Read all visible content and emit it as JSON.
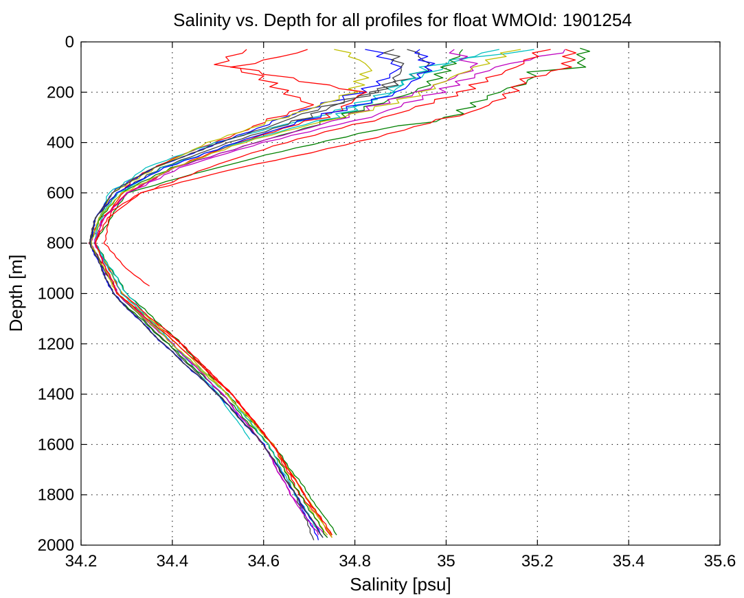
{
  "chart_data": {
    "type": "line",
    "title": "Salinity vs. Depth for all profiles for float WMOId: 1901254",
    "xlabel": "Salinity [psu]",
    "ylabel": "Depth [m]",
    "xlim": [
      34.2,
      35.6
    ],
    "ylim": [
      0,
      2000
    ],
    "y_reversed": true,
    "grid": true,
    "legend": "none",
    "x_ticks": [
      34.2,
      34.4,
      34.6,
      34.8,
      35,
      35.2,
      35.4,
      35.6
    ],
    "x_tick_labels": [
      "34.2",
      "34.4",
      "34.6",
      "34.8",
      "35",
      "35.2",
      "35.4",
      "35.6"
    ],
    "y_ticks": [
      0,
      200,
      400,
      600,
      800,
      1000,
      1200,
      1400,
      1600,
      1800,
      2000
    ],
    "y_tick_labels": [
      "0",
      "200",
      "400",
      "600",
      "800",
      "1000",
      "1200",
      "1400",
      "1600",
      "1800",
      "2000"
    ],
    "series_colors": [
      "#ff0000",
      "#008000",
      "#0000ff",
      "#00bfbf",
      "#bf00bf",
      "#bfbf00",
      "#404040"
    ],
    "series": [
      {
        "color": "#008000",
        "depth": [
          25,
          50,
          100,
          120,
          200,
          300,
          350,
          450,
          600,
          800,
          1000,
          1200,
          1400,
          1600,
          1800,
          1960
        ],
        "salinity": [
          35.32,
          35.31,
          35.28,
          35.2,
          35.13,
          35.0,
          34.85,
          34.6,
          34.3,
          34.23,
          34.3,
          34.42,
          34.52,
          34.62,
          34.7,
          34.76
        ]
      },
      {
        "color": "#ff0000",
        "depth": [
          30,
          90,
          150,
          250,
          320,
          450,
          550,
          650,
          800,
          900,
          970
        ],
        "salinity": [
          34.58,
          34.5,
          34.6,
          34.72,
          34.6,
          34.42,
          34.31,
          34.27,
          34.25,
          34.3,
          34.35
        ]
      },
      {
        "color": "#ff0000",
        "depth": [
          30,
          100,
          180,
          280,
          380,
          500,
          600,
          700,
          800,
          1000,
          1200,
          1400,
          1600,
          1800,
          1970
        ],
        "salinity": [
          35.27,
          35.25,
          35.15,
          35.05,
          34.85,
          34.55,
          34.33,
          34.24,
          34.22,
          34.28,
          34.42,
          34.53,
          34.62,
          34.69,
          34.75
        ]
      },
      {
        "color": "#00bfbf",
        "depth": [
          30,
          80,
          200,
          300,
          400,
          500,
          600,
          800,
          1000,
          1200,
          1400,
          1580
        ],
        "salinity": [
          35.2,
          35.0,
          34.88,
          34.7,
          34.5,
          34.34,
          34.26,
          34.23,
          34.3,
          34.4,
          34.5,
          34.57
        ]
      },
      {
        "color": "#0000ff",
        "depth": [
          30,
          100,
          200,
          300,
          400,
          500,
          600,
          700,
          800,
          1000,
          1200,
          1400,
          1600,
          1800,
          1980
        ],
        "salinity": [
          34.85,
          34.9,
          34.8,
          34.66,
          34.5,
          34.36,
          34.27,
          34.23,
          34.22,
          34.27,
          34.38,
          34.5,
          34.6,
          34.67,
          34.72
        ]
      },
      {
        "color": "#bf00bf",
        "depth": [
          30,
          100,
          200,
          300,
          400,
          500,
          600,
          700,
          800,
          1000,
          1200,
          1400,
          1600,
          1800,
          1970
        ],
        "salinity": [
          35.26,
          35.1,
          35.0,
          34.82,
          34.6,
          34.42,
          34.3,
          34.25,
          34.22,
          34.28,
          34.4,
          34.51,
          34.6,
          34.66,
          34.74
        ]
      },
      {
        "color": "#bfbf00",
        "depth": [
          30,
          100,
          200,
          300,
          400,
          500,
          600,
          700,
          800,
          1000,
          1200,
          1400,
          1600,
          1800,
          1960
        ],
        "salinity": [
          34.78,
          34.85,
          34.78,
          34.65,
          34.48,
          34.36,
          34.27,
          34.24,
          34.23,
          34.29,
          34.41,
          34.52,
          34.61,
          34.68,
          34.74
        ]
      },
      {
        "color": "#404040",
        "depth": [
          30,
          100,
          200,
          300,
          400,
          500,
          600,
          700,
          800,
          1000,
          1200,
          1400,
          1600,
          1800,
          1980
        ],
        "salinity": [
          34.92,
          34.95,
          34.85,
          34.7,
          34.52,
          34.38,
          34.28,
          34.23,
          34.22,
          34.28,
          34.39,
          34.5,
          34.6,
          34.67,
          34.71
        ]
      },
      {
        "color": "#ff0000",
        "depth": [
          30,
          100,
          200,
          300,
          400,
          500,
          600,
          700,
          800,
          1000,
          1200,
          1400,
          1600,
          1800,
          1960
        ],
        "salinity": [
          34.7,
          34.55,
          34.82,
          34.72,
          34.55,
          34.4,
          34.3,
          34.25,
          34.23,
          34.29,
          34.42,
          34.53,
          34.62,
          34.68,
          34.75
        ]
      },
      {
        "color": "#008000",
        "depth": [
          30,
          100,
          200,
          300,
          400,
          500,
          600,
          700,
          800,
          1000,
          1200,
          1400,
          1600,
          1800,
          1970
        ],
        "salinity": [
          35.05,
          35.0,
          34.92,
          34.78,
          34.58,
          34.4,
          34.29,
          34.24,
          34.22,
          34.27,
          34.39,
          34.51,
          34.61,
          34.68,
          34.74
        ]
      },
      {
        "color": "#00bfbf",
        "depth": [
          30,
          100,
          200,
          300,
          400,
          500,
          600,
          700,
          800,
          1000,
          1200,
          1400,
          1600,
          1800,
          1970
        ],
        "salinity": [
          35.1,
          34.95,
          34.9,
          34.74,
          34.55,
          34.38,
          34.28,
          34.24,
          34.23,
          34.29,
          34.4,
          34.52,
          34.61,
          34.67,
          34.73
        ]
      },
      {
        "color": "#0000ff",
        "depth": [
          30,
          100,
          200,
          300,
          400,
          500,
          600,
          700,
          800,
          1000,
          1200,
          1400,
          1600,
          1800,
          1970
        ],
        "salinity": [
          34.95,
          34.98,
          34.88,
          34.72,
          34.54,
          34.38,
          34.28,
          34.23,
          34.22,
          34.27,
          34.38,
          34.5,
          34.6,
          34.67,
          34.73
        ]
      },
      {
        "color": "#bf00bf",
        "depth": [
          30,
          100,
          200,
          300,
          400,
          500,
          600,
          700,
          800,
          1000,
          1200,
          1400,
          1600,
          1800,
          1960
        ],
        "salinity": [
          35.0,
          35.05,
          34.95,
          34.78,
          34.58,
          34.41,
          34.3,
          34.25,
          34.23,
          34.28,
          34.4,
          34.51,
          34.6,
          34.66,
          34.72
        ]
      },
      {
        "color": "#bfbf00",
        "depth": [
          30,
          100,
          200,
          300,
          400,
          500,
          600,
          700,
          800,
          1000,
          1200,
          1400,
          1600,
          1800,
          1970
        ],
        "salinity": [
          35.15,
          35.08,
          34.95,
          34.76,
          34.56,
          34.4,
          34.29,
          34.24,
          34.22,
          34.28,
          34.4,
          34.52,
          34.62,
          34.69,
          34.75
        ]
      },
      {
        "color": "#404040",
        "depth": [
          30,
          100,
          200,
          300,
          400,
          500,
          600,
          700,
          800,
          1000,
          1200,
          1400,
          1600,
          1800,
          1970
        ],
        "salinity": [
          34.88,
          34.9,
          34.84,
          34.68,
          34.5,
          34.36,
          34.27,
          34.23,
          34.22,
          34.27,
          34.38,
          34.5,
          34.6,
          34.67,
          34.73
        ]
      },
      {
        "color": "#ff0000",
        "depth": [
          30,
          100,
          200,
          300,
          400,
          500,
          600,
          700,
          800,
          1000,
          1200,
          1400,
          1600,
          1800,
          1960
        ],
        "salinity": [
          35.2,
          35.15,
          35.05,
          34.85,
          34.65,
          34.48,
          34.33,
          34.26,
          34.23,
          34.28,
          34.41,
          34.53,
          34.62,
          34.69,
          34.75
        ]
      }
    ]
  }
}
